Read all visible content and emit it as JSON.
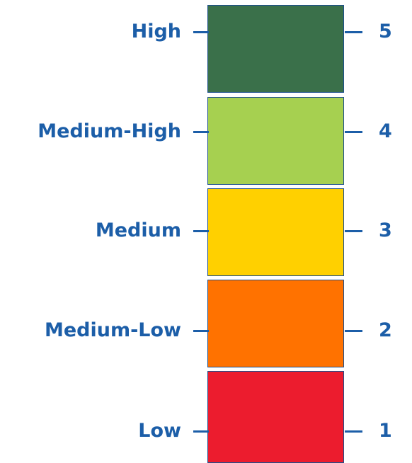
{
  "levels": [
    {
      "label": "High",
      "value": "5",
      "color": "#3a704a"
    },
    {
      "label": "Medium-High",
      "value": "4",
      "color": "#a6d050"
    },
    {
      "label": "Medium",
      "value": "3",
      "color": "#ffd000"
    },
    {
      "label": "Medium-Low",
      "value": "2",
      "color": "#ff7200"
    },
    {
      "label": "Low",
      "value": "1",
      "color": "#ec1c2e"
    }
  ]
}
